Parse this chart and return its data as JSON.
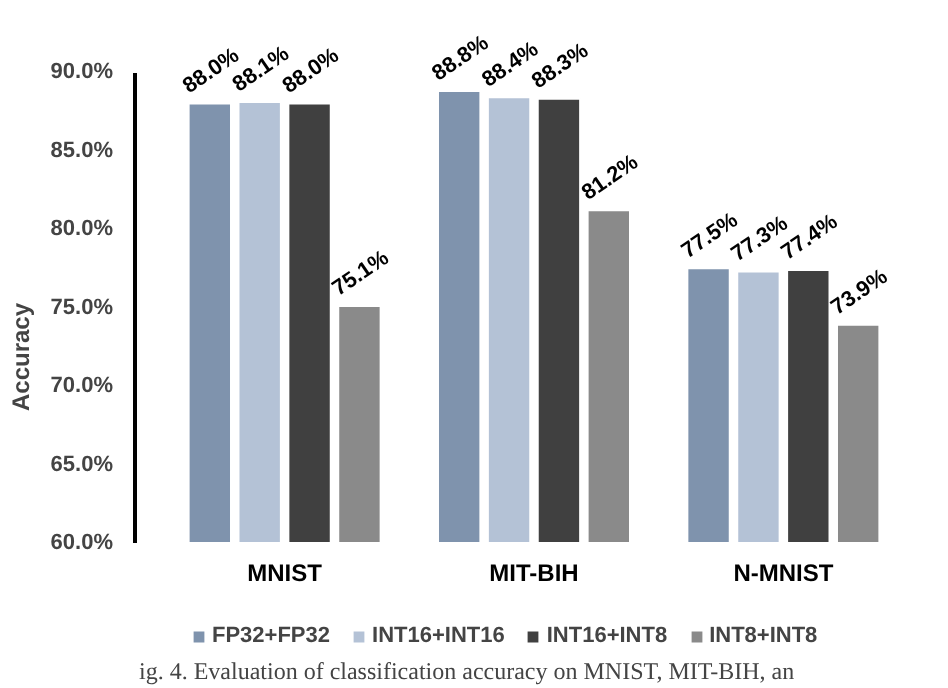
{
  "chart_data": {
    "type": "bar",
    "ylabel": "Accuracy",
    "categories": [
      "MNIST",
      "MIT-BIH",
      "N-MNIST"
    ],
    "series": [
      {
        "name": "FP32+FP32",
        "color": "#7f93ad",
        "values": [
          88.0,
          88.8,
          77.5
        ],
        "value_labels": [
          "88.0%",
          "88.8%",
          "77.5%"
        ]
      },
      {
        "name": "INT16+INT16",
        "color": "#b4c2d6",
        "values": [
          88.1,
          88.4,
          77.3
        ],
        "value_labels": [
          "88.1%",
          "88.4%",
          "77.3%"
        ]
      },
      {
        "name": "INT16+INT8",
        "color": "#404040",
        "values": [
          88.0,
          88.3,
          77.4
        ],
        "value_labels": [
          "88.0%",
          "88.3%",
          "77.4%"
        ]
      },
      {
        "name": "INT8+INT8",
        "color": "#8a8a8a",
        "values": [
          75.1,
          81.2,
          73.9
        ],
        "value_labels": [
          "75.1%",
          "81.2%",
          "73.9%"
        ]
      }
    ],
    "ylim": [
      60,
      90
    ],
    "yticks": [
      {
        "value": 60,
        "label": "60.0%"
      },
      {
        "value": 65,
        "label": "65.0%"
      },
      {
        "value": 70,
        "label": "70.0%"
      },
      {
        "value": 75,
        "label": "75.0%"
      },
      {
        "value": 80,
        "label": "80.0%"
      },
      {
        "value": 85,
        "label": "85.0%"
      },
      {
        "value": 90,
        "label": "90.0%"
      }
    ],
    "legend": "bottom",
    "annotations": [
      "ig. 4.   Evaluation of classification accuracy on MNIST, MIT-BIH, an"
    ]
  }
}
